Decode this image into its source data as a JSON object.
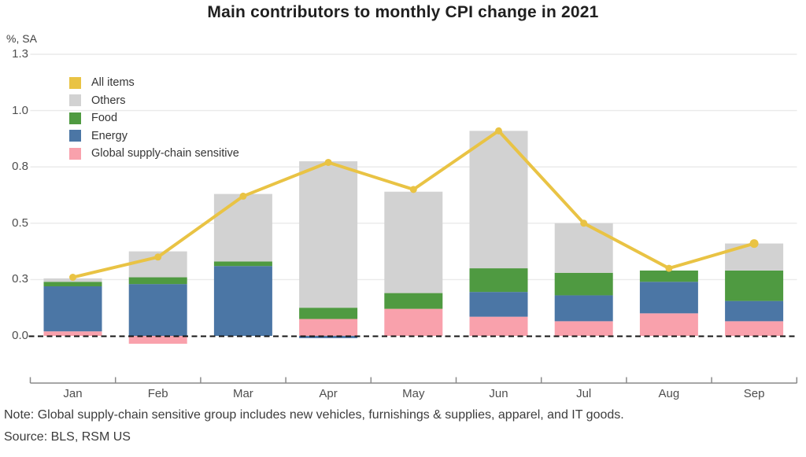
{
  "chart_data": {
    "type": "bar",
    "subtype": "stacked-bars-with-line-overlay",
    "title": "Main contributors to monthly CPI change in 2021",
    "ylabel": "%, SA",
    "xlabel": "",
    "categories": [
      "Jan",
      "Feb",
      "Mar",
      "Apr",
      "May",
      "Jun",
      "Jul",
      "Aug",
      "Sep"
    ],
    "series": [
      {
        "name": "Global supply-chain sensitive",
        "color": "#F9A1AC",
        "values": [
          0.02,
          -0.035,
          0.0,
          0.075,
          0.12,
          0.085,
          0.065,
          0.1,
          0.065
        ]
      },
      {
        "name": "Energy",
        "color": "#4B76A5",
        "values": [
          0.2,
          0.23,
          0.31,
          -0.01,
          0.0,
          0.11,
          0.115,
          0.14,
          0.09
        ]
      },
      {
        "name": "Food",
        "color": "#4F9A41",
        "values": [
          0.02,
          0.03,
          0.02,
          0.05,
          0.07,
          0.105,
          0.1,
          0.05,
          0.135
        ]
      },
      {
        "name": "Others",
        "color": "#D2D2D2",
        "values": [
          0.015,
          0.115,
          0.3,
          0.65,
          0.45,
          0.61,
          0.22,
          0.0,
          0.12
        ]
      }
    ],
    "line_series": {
      "name": "All items",
      "color": "#E9C344",
      "values": [
        0.26,
        0.35,
        0.62,
        0.77,
        0.65,
        0.91,
        0.5,
        0.3,
        0.41
      ]
    },
    "y_ticks": [
      {
        "value": 0.0,
        "label": "0.0"
      },
      {
        "value": 0.25,
        "label": "0.3"
      },
      {
        "value": 0.5,
        "label": "0.5"
      },
      {
        "value": 0.75,
        "label": "0.8"
      },
      {
        "value": 1.0,
        "label": "1.0"
      },
      {
        "value": 1.25,
        "label": "1.3"
      }
    ],
    "ylim": [
      -0.07,
      1.3
    ],
    "grid": true,
    "zero_line": "dashed-black",
    "legend_position": "top-left"
  },
  "legend": {
    "items": [
      {
        "label": "All items",
        "color": "#E9C344"
      },
      {
        "label": "Others",
        "color": "#D2D2D2"
      },
      {
        "label": "Food",
        "color": "#4F9A41"
      },
      {
        "label": "Energy",
        "color": "#4B76A5"
      },
      {
        "label": "Global supply-chain sensitive",
        "color": "#F9A1AC"
      }
    ]
  },
  "footer": {
    "note": "Note: Global supply-chain sensitive group includes new vehicles, furnishings & supplies, apparel, and IT goods.",
    "source": "Source: BLS, RSM US"
  }
}
